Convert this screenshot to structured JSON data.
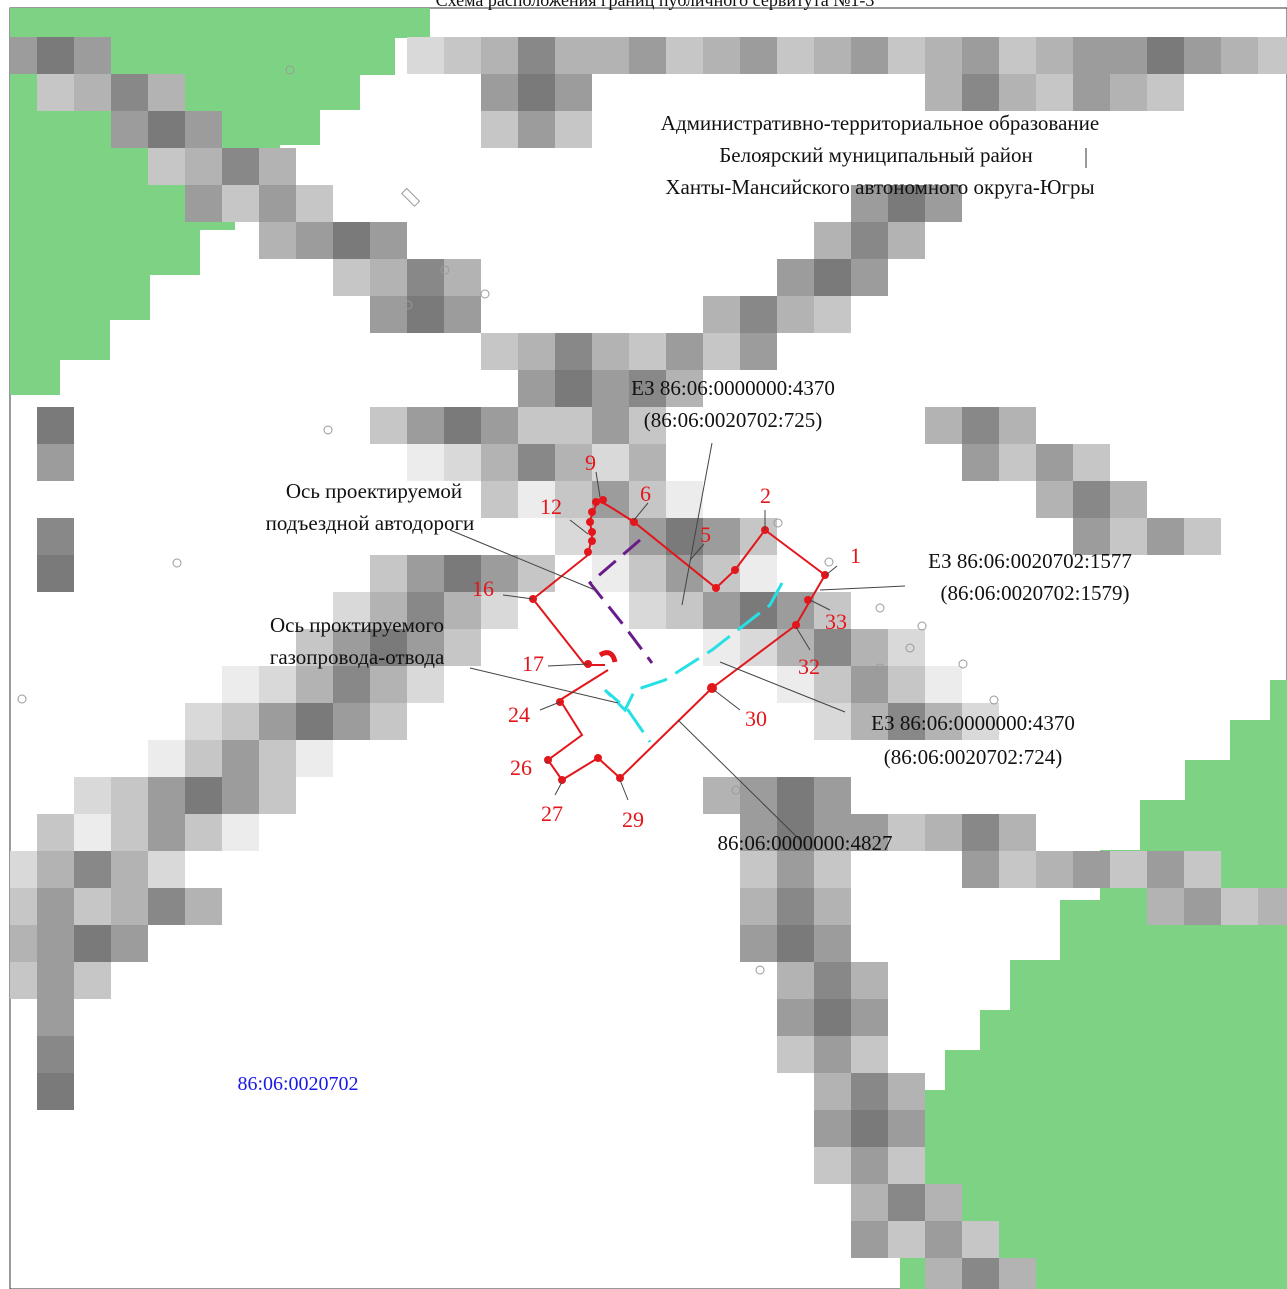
{
  "header": {
    "title": "Схема расположения границ публичного сервитута №1-3"
  },
  "admin_unit": {
    "line1": "Административно-территориальное образование",
    "line2": "Белоярский муниципальный район",
    "line3": "Ханты-Мансийского автономного округа-Югры"
  },
  "parcels": {
    "ez_725": {
      "line1": "ЕЗ 86:06:0000000:4370",
      "line2": "(86:06:0020702:725)"
    },
    "ez_1577": {
      "line1": "ЕЗ 86:06:0020702:1577",
      "line2": "(86:06:0020702:1579)"
    },
    "ez_724": {
      "line1": "ЕЗ 86:06:0000000:4370",
      "line2": "(86:06:0020702:724)"
    },
    "p4827": "86:06:0000000:4827",
    "quarter": "86:06:0020702"
  },
  "axes": {
    "road": {
      "line1": "Ось проектируемой",
      "line2": "подъездной автодороги"
    },
    "gas": {
      "line1": "Ось проктируемого",
      "line2": "газопровода-отвода"
    }
  },
  "points": [
    "1",
    "2",
    "5",
    "6",
    "9",
    "12",
    "16",
    "17",
    "24",
    "26",
    "27",
    "29",
    "30",
    "32",
    "33"
  ],
  "colors": {
    "boundary": "#e3161b",
    "road_axis": "#6a1b8a",
    "gas_axis": "#27e0e6",
    "forest": "#7dd383",
    "quarter_label": "#1a1ae6"
  }
}
